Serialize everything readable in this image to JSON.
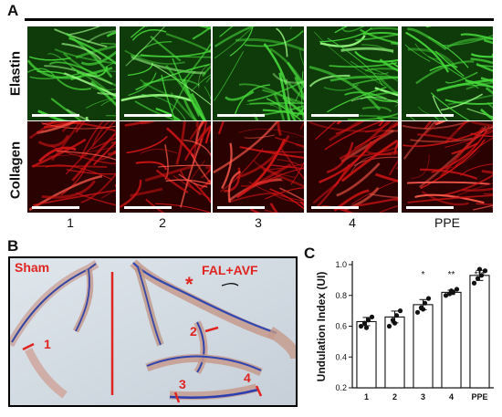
{
  "panel_a": {
    "letter": "A",
    "rows": [
      "Elastin",
      "Collagen"
    ],
    "columns": [
      "1",
      "2",
      "3",
      "4",
      "PPE"
    ]
  },
  "panel_b": {
    "letter": "B",
    "sham_label": "Sham",
    "treatment_label": "FAL+AVF",
    "asterisk": "*",
    "segments": [
      "1",
      "2",
      "3",
      "4"
    ]
  },
  "chart_data": {
    "type": "bar",
    "letter": "C",
    "categories": [
      "1",
      "2",
      "3",
      "4",
      "PPE"
    ],
    "values": [
      0.63,
      0.66,
      0.74,
      0.82,
      0.93
    ],
    "points": [
      [
        0.6,
        0.62,
        0.64,
        0.66,
        0.59
      ],
      [
        0.6,
        0.64,
        0.67,
        0.7,
        0.62
      ],
      [
        0.69,
        0.72,
        0.75,
        0.78,
        0.71
      ],
      [
        0.8,
        0.81,
        0.82,
        0.84,
        0.83
      ],
      [
        0.88,
        0.91,
        0.93,
        0.96,
        0.97
      ]
    ],
    "significance": [
      "",
      "",
      "*",
      "**",
      "***"
    ],
    "ylabel": "Undulation Index (UI)",
    "xlabel": "",
    "ylim": [
      0.2,
      1.0
    ],
    "yticks": [
      "0.2",
      "0.4",
      "0.6",
      "0.8",
      "1.0"
    ]
  }
}
